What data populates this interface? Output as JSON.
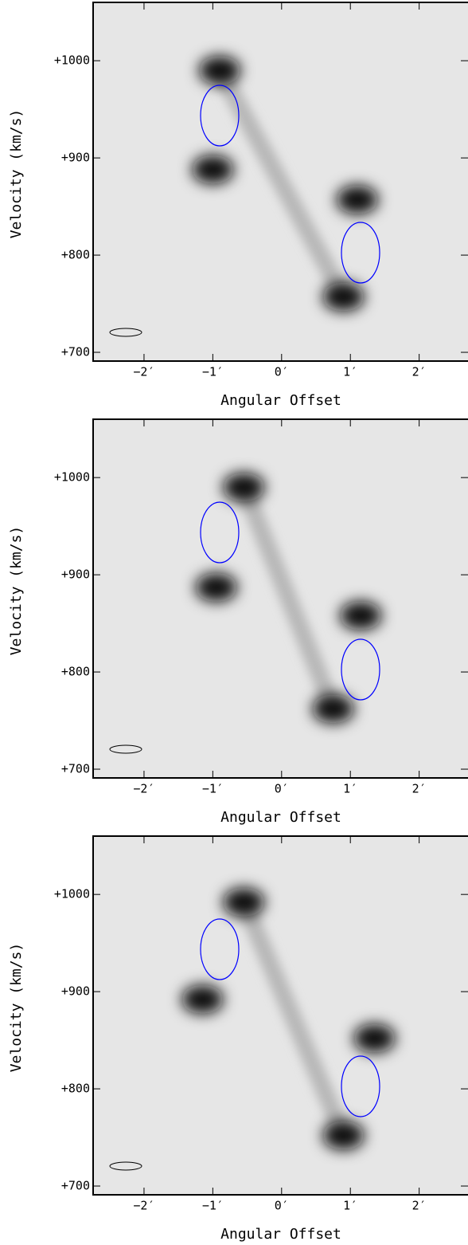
{
  "chart_data": [
    {
      "type": "scatter",
      "xlabel": "Angular Offset",
      "ylabel": "Velocity (km/s)",
      "x": [
        -0.9,
        -1.0,
        1.1,
        0.9
      ],
      "values": [
        990,
        888,
        857,
        757
      ],
      "xlim": [
        -2.74,
        2.71
      ],
      "ylim": [
        691,
        1060
      ],
      "xticks": [
        {
          "value": -2,
          "label": "−2′"
        },
        {
          "value": -1,
          "label": "−1′"
        },
        {
          "value": 0,
          "label": "0′"
        },
        {
          "value": 1,
          "label": "1′"
        },
        {
          "value": 2,
          "label": "2′"
        }
      ],
      "yticks": [
        {
          "value": 700,
          "label": "+700"
        },
        {
          "value": 800,
          "label": "+800"
        },
        {
          "value": 900,
          "label": "+900"
        },
        {
          "value": 1000,
          "label": "+1000"
        }
      ]
    },
    {
      "type": "scatter",
      "xlabel": "Angular Offset",
      "ylabel": "Velocity (km/s)",
      "x": [
        -0.55,
        -0.95,
        1.15,
        0.75
      ],
      "values": [
        990,
        887,
        858,
        762
      ],
      "xlim": [
        -2.74,
        2.71
      ],
      "ylim": [
        691,
        1060
      ],
      "xticks": [
        {
          "value": -2,
          "label": "−2′"
        },
        {
          "value": -1,
          "label": "−1′"
        },
        {
          "value": 0,
          "label": "0′"
        },
        {
          "value": 1,
          "label": "1′"
        },
        {
          "value": 2,
          "label": "2′"
        }
      ],
      "yticks": [
        {
          "value": 700,
          "label": "+700"
        },
        {
          "value": 800,
          "label": "+800"
        },
        {
          "value": 900,
          "label": "+900"
        },
        {
          "value": 1000,
          "label": "+1000"
        }
      ]
    },
    {
      "type": "scatter",
      "xlabel": "Angular Offset",
      "ylabel": "Velocity (km/s)",
      "x": [
        -0.55,
        -1.15,
        1.35,
        0.9
      ],
      "values": [
        992,
        892,
        852,
        752
      ],
      "xlim": [
        -2.74,
        2.71
      ],
      "ylim": [
        691,
        1060
      ],
      "xticks": [
        {
          "value": -2,
          "label": "−2′"
        },
        {
          "value": -1,
          "label": "−1′"
        },
        {
          "value": 0,
          "label": "0′"
        },
        {
          "value": 1,
          "label": "1′"
        },
        {
          "value": 2,
          "label": "2′"
        }
      ],
      "yticks": [
        {
          "value": 700,
          "label": "+700"
        },
        {
          "value": 800,
          "label": "+800"
        },
        {
          "value": 900,
          "label": "+900"
        },
        {
          "value": 1000,
          "label": "+1000"
        }
      ]
    }
  ]
}
